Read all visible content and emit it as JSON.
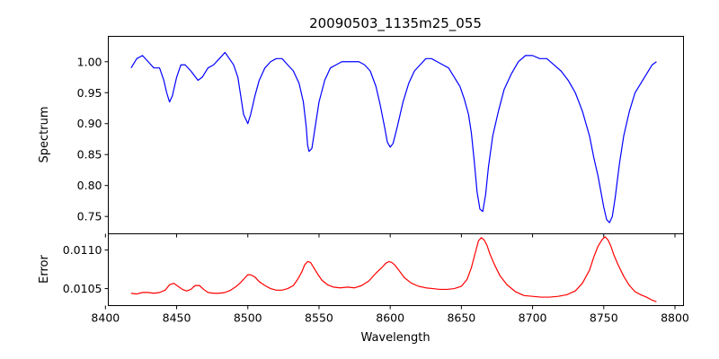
{
  "chart_data": [
    {
      "type": "line",
      "title": "20090503_1135m25_055",
      "xlabel": "",
      "ylabel": "Spectrum",
      "xlim": [
        8402,
        8806
      ],
      "ylim": [
        0.722,
        1.041
      ],
      "x_ticks": [
        8400,
        8450,
        8500,
        8550,
        8600,
        8650,
        8700,
        8750,
        8800
      ],
      "y_ticks": [
        0.75,
        0.8,
        0.85,
        0.9,
        0.95,
        1.0
      ],
      "y_tick_labels": [
        "0.75",
        "0.80",
        "0.85",
        "0.90",
        "0.95",
        "1.00"
      ],
      "series": [
        {
          "color": "#0000ff",
          "x": [
            8418,
            8422,
            8426,
            8430,
            8434,
            8438,
            8441,
            8443,
            8445,
            8447,
            8450,
            8453,
            8456,
            8460,
            8465,
            8468,
            8472,
            8476,
            8480,
            8484,
            8487,
            8490,
            8493,
            8495,
            8497,
            8499,
            8500,
            8502,
            8505,
            8508,
            8512,
            8516,
            8520,
            8524,
            8528,
            8532,
            8536,
            8539,
            8541,
            8542,
            8543,
            8545,
            8547,
            8550,
            8554,
            8558,
            8562,
            8566,
            8570,
            8574,
            8578,
            8582,
            8586,
            8590,
            8593,
            8596,
            8598,
            8600,
            8602,
            8605,
            8609,
            8613,
            8617,
            8621,
            8625,
            8629,
            8633,
            8637,
            8641,
            8645,
            8649,
            8652,
            8655,
            8657,
            8659,
            8661,
            8663,
            8665,
            8667,
            8669,
            8672,
            8676,
            8680,
            8685,
            8690,
            8695,
            8700,
            8705,
            8710,
            8715,
            8720,
            8725,
            8730,
            8735,
            8740,
            8743,
            8746,
            8748,
            8750,
            8752,
            8754,
            8756,
            8758,
            8761,
            8764,
            8768,
            8772,
            8776,
            8780,
            8784,
            8787
          ],
          "y": [
            0.99,
            1.005,
            1.01,
            1.0,
            0.99,
            0.99,
            0.97,
            0.95,
            0.935,
            0.945,
            0.975,
            0.995,
            0.995,
            0.985,
            0.97,
            0.975,
            0.99,
            0.995,
            1.005,
            1.015,
            1.005,
            0.995,
            0.975,
            0.945,
            0.915,
            0.905,
            0.9,
            0.915,
            0.945,
            0.97,
            0.99,
            1.0,
            1.005,
            1.005,
            0.995,
            0.985,
            0.965,
            0.935,
            0.895,
            0.865,
            0.855,
            0.86,
            0.89,
            0.935,
            0.97,
            0.99,
            0.995,
            1.0,
            1.0,
            1.0,
            1.0,
            0.995,
            0.985,
            0.96,
            0.93,
            0.895,
            0.87,
            0.862,
            0.868,
            0.895,
            0.935,
            0.965,
            0.985,
            0.995,
            1.005,
            1.005,
            1.0,
            0.995,
            0.99,
            0.975,
            0.96,
            0.94,
            0.915,
            0.885,
            0.84,
            0.79,
            0.762,
            0.758,
            0.785,
            0.83,
            0.88,
            0.92,
            0.955,
            0.98,
            1.0,
            1.01,
            1.01,
            1.005,
            1.005,
            0.995,
            0.985,
            0.97,
            0.95,
            0.92,
            0.88,
            0.845,
            0.815,
            0.79,
            0.765,
            0.745,
            0.74,
            0.75,
            0.78,
            0.835,
            0.88,
            0.92,
            0.95,
            0.965,
            0.98,
            0.995,
            1.0
          ]
        }
      ]
    },
    {
      "type": "line",
      "title": "",
      "xlabel": "Wavelength",
      "ylabel": "Error",
      "xlim": [
        8402,
        8806
      ],
      "ylim": [
        0.01028,
        0.01121
      ],
      "x_ticks": [
        8400,
        8450,
        8500,
        8550,
        8600,
        8650,
        8700,
        8750,
        8800
      ],
      "x_tick_labels": [
        "8400",
        "8450",
        "8500",
        "8550",
        "8600",
        "8650",
        "8700",
        "8750",
        "8800"
      ],
      "y_ticks": [
        0.0105,
        0.011
      ],
      "y_tick_labels": [
        "0.0105",
        "0.0110"
      ],
      "series": [
        {
          "color": "#ff0000",
          "x": [
            8418,
            8422,
            8426,
            8430,
            8434,
            8438,
            8442,
            8445,
            8448,
            8451,
            8454,
            8457,
            8460,
            8463,
            8466,
            8469,
            8472,
            8476,
            8480,
            8484,
            8488,
            8492,
            8495,
            8498,
            8500,
            8502,
            8505,
            8508,
            8512,
            8516,
            8520,
            8524,
            8528,
            8532,
            8535,
            8538,
            8540,
            8542,
            8544,
            8546,
            8549,
            8552,
            8556,
            8560,
            8565,
            8570,
            8575,
            8580,
            8585,
            8590,
            8594,
            8597,
            8599,
            8601,
            8603,
            8606,
            8610,
            8615,
            8620,
            8625,
            8630,
            8635,
            8640,
            8645,
            8650,
            8654,
            8657,
            8660,
            8662,
            8664,
            8666,
            8668,
            8670,
            8673,
            8677,
            8682,
            8688,
            8694,
            8700,
            8706,
            8712,
            8718,
            8724,
            8730,
            8735,
            8740,
            8743,
            8746,
            8749,
            8751,
            8753,
            8755,
            8757,
            8760,
            8764,
            8768,
            8772,
            8776,
            8780,
            8784,
            8787
          ],
          "y": [
            0.01044,
            0.01043,
            0.01045,
            0.01045,
            0.01044,
            0.01045,
            0.01048,
            0.01055,
            0.01057,
            0.01053,
            0.01049,
            0.01047,
            0.01049,
            0.01054,
            0.01054,
            0.01049,
            0.01045,
            0.01044,
            0.01044,
            0.01045,
            0.01048,
            0.01053,
            0.01058,
            0.01064,
            0.01068,
            0.01068,
            0.01065,
            0.01059,
            0.01054,
            0.0105,
            0.01048,
            0.01048,
            0.0105,
            0.01054,
            0.01062,
            0.01072,
            0.01081,
            0.01085,
            0.01084,
            0.01078,
            0.01069,
            0.01061,
            0.01055,
            0.01052,
            0.01051,
            0.01052,
            0.01051,
            0.01054,
            0.0106,
            0.0107,
            0.01077,
            0.01083,
            0.01085,
            0.01084,
            0.01081,
            0.01074,
            0.01064,
            0.01057,
            0.01053,
            0.01051,
            0.0105,
            0.01049,
            0.01049,
            0.0105,
            0.01053,
            0.01062,
            0.01077,
            0.01098,
            0.01112,
            0.01116,
            0.01113,
            0.01106,
            0.01095,
            0.01082,
            0.01067,
            0.01055,
            0.01046,
            0.01041,
            0.0104,
            0.01039,
            0.01039,
            0.0104,
            0.01042,
            0.01047,
            0.01057,
            0.01074,
            0.01091,
            0.01105,
            0.01114,
            0.01117,
            0.01113,
            0.01105,
            0.01094,
            0.01081,
            0.01066,
            0.01054,
            0.01046,
            0.01042,
            0.01039,
            0.01035,
            0.01033
          ]
        }
      ]
    }
  ]
}
